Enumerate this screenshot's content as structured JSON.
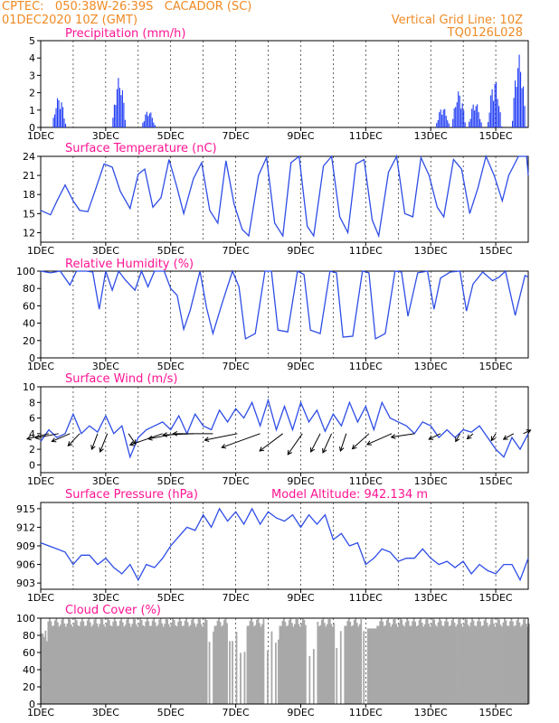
{
  "header": {
    "line1": "CPTEC:   050:38W-26:39S   CACADOR (SC)",
    "line2": "01DEC2020 10Z (GMT)",
    "grid_note": "Vertical Grid Line: 10Z",
    "code": "TQ0126L028"
  },
  "colors": {
    "header": "#f08a24",
    "title": "#ff1493",
    "line": "#2e4de6",
    "bar": "#1f3bf5",
    "cloud": "#a8a8a8",
    "frame": "#000000",
    "grid": "#000000"
  },
  "x_axis": {
    "start_day": 1,
    "end_day": 16,
    "tick_days": [
      1,
      3,
      5,
      7,
      9,
      11,
      13,
      15
    ],
    "tick_labels": [
      "1DEC",
      "3DEC",
      "5DEC",
      "7DEC",
      "9DEC",
      "11DEC",
      "13DEC",
      "15DEC"
    ]
  },
  "chart_data": [
    {
      "type": "bar",
      "title": "Precipitation (mm/h)",
      "ylim": [
        0,
        5
      ],
      "yticks": [
        0,
        1,
        2,
        3,
        4,
        5
      ],
      "grid": "dashed at 5 and day lines",
      "bursts": [
        {
          "day": 1.55,
          "peak": 1.8
        },
        {
          "day": 3.4,
          "peak": 2.9
        },
        {
          "day": 4.3,
          "peak": 1.0
        },
        {
          "day": 13.35,
          "peak": 1.2
        },
        {
          "day": 13.85,
          "peak": 2.1
        },
        {
          "day": 14.35,
          "peak": 1.5
        },
        {
          "day": 14.95,
          "peak": 2.8
        },
        {
          "day": 15.7,
          "peak": 4.2
        }
      ]
    },
    {
      "type": "line",
      "title": "Surface Temperature (nC)",
      "ylim": [
        10.5,
        24
      ],
      "yticks": [
        12,
        15,
        18,
        21,
        24
      ],
      "series": [
        {
          "x": [
            1.0,
            1.3,
            1.5,
            1.75,
            2.0,
            2.2,
            2.45,
            2.7,
            2.95,
            3.2,
            3.45,
            3.75,
            4.0,
            4.2,
            4.45,
            4.7,
            4.95,
            5.2,
            5.4,
            5.7,
            5.95,
            6.2,
            6.45,
            6.7,
            6.95,
            7.2,
            7.4,
            7.7,
            7.95,
            8.2,
            8.45,
            8.7,
            8.95,
            9.2,
            9.4,
            9.7,
            9.95,
            10.2,
            10.45,
            10.7,
            10.95,
            11.2,
            11.4,
            11.7,
            11.95,
            12.2,
            12.45,
            12.7,
            12.95,
            13.2,
            13.4,
            13.7,
            13.95,
            14.2,
            14.45,
            14.7,
            14.95,
            15.2,
            15.4,
            15.7,
            15.95,
            16.0
          ],
          "y": [
            15.5,
            14.8,
            17.0,
            19.5,
            17.0,
            15.5,
            15.3,
            19.0,
            22.8,
            22.3,
            18.5,
            15.8,
            21.2,
            22.0,
            16.0,
            17.5,
            23.5,
            19.0,
            15.0,
            20.5,
            23.0,
            15.5,
            13.5,
            23.3,
            16.5,
            12.5,
            11.5,
            21.0,
            23.8,
            13.5,
            11.5,
            23.0,
            24.0,
            13.0,
            11.5,
            22.5,
            24.0,
            14.5,
            12.0,
            22.8,
            23.5,
            14.0,
            11.5,
            21.5,
            24.0,
            15.0,
            14.5,
            23.8,
            21.0,
            16.0,
            14.5,
            23.5,
            22.0,
            15.0,
            19.0,
            24.0,
            21.0,
            17.0,
            21.0,
            24.0,
            24.0,
            21.0
          ]
        }
      ]
    },
    {
      "type": "line",
      "title": "Relative Humidity (%)",
      "ylim": [
        0,
        100
      ],
      "yticks": [
        0,
        20,
        40,
        60,
        80,
        100
      ],
      "series": [
        {
          "x": [
            1.0,
            1.3,
            1.6,
            1.9,
            2.1,
            2.4,
            2.6,
            2.8,
            3.0,
            3.2,
            3.4,
            3.6,
            3.9,
            4.1,
            4.3,
            4.5,
            4.8,
            5.0,
            5.2,
            5.4,
            5.6,
            5.9,
            6.1,
            6.3,
            6.6,
            6.9,
            7.1,
            7.3,
            7.6,
            7.9,
            8.1,
            8.3,
            8.6,
            8.9,
            9.1,
            9.3,
            9.6,
            9.9,
            10.1,
            10.3,
            10.6,
            10.9,
            11.1,
            11.3,
            11.6,
            11.9,
            12.1,
            12.3,
            12.6,
            12.9,
            13.1,
            13.3,
            13.6,
            13.9,
            14.1,
            14.3,
            14.6,
            14.9,
            15.1,
            15.3,
            15.6,
            15.9,
            16.0
          ],
          "y": [
            100,
            98,
            100,
            84,
            100,
            100,
            99,
            56,
            100,
            78,
            100,
            90,
            78,
            100,
            82,
            100,
            100,
            80,
            72,
            33,
            55,
            100,
            58,
            28,
            65,
            100,
            82,
            22,
            28,
            100,
            100,
            32,
            30,
            100,
            96,
            32,
            28,
            100,
            98,
            24,
            25,
            100,
            98,
            22,
            28,
            100,
            99,
            48,
            98,
            100,
            56,
            92,
            99,
            100,
            54,
            85,
            99,
            89,
            93,
            100,
            49,
            95,
            93
          ]
        }
      ]
    },
    {
      "type": "line",
      "title": "Surface Wind (m/s)",
      "ylim": [
        -1,
        10
      ],
      "yticks": [
        0,
        2,
        4,
        6,
        8,
        10
      ],
      "series": [
        {
          "x": [
            1.0,
            1.25,
            1.5,
            1.75,
            2.0,
            2.25,
            2.5,
            2.75,
            3.0,
            3.25,
            3.5,
            3.75,
            4.0,
            4.25,
            4.5,
            4.75,
            5.0,
            5.25,
            5.5,
            5.75,
            6.0,
            6.25,
            6.5,
            6.75,
            7.0,
            7.25,
            7.5,
            7.75,
            8.0,
            8.25,
            8.5,
            8.75,
            9.0,
            9.25,
            9.5,
            9.75,
            10.0,
            10.25,
            10.5,
            10.75,
            11.0,
            11.25,
            11.5,
            11.75,
            12.0,
            12.25,
            12.5,
            12.75,
            13.0,
            13.25,
            13.5,
            13.75,
            14.0,
            14.25,
            14.5,
            14.75,
            15.0,
            15.25,
            15.5,
            15.75,
            16.0
          ],
          "y": [
            3.0,
            4.5,
            3.5,
            4.0,
            6.5,
            4.0,
            5.0,
            4.2,
            6.3,
            4.0,
            5.0,
            1.0,
            3.5,
            4.5,
            5.0,
            5.5,
            4.5,
            6.3,
            4.0,
            6.5,
            5.0,
            4.5,
            7.0,
            5.5,
            7.2,
            6.0,
            8.0,
            5.0,
            8.3,
            4.5,
            7.5,
            4.5,
            8.0,
            5.5,
            7.0,
            4.3,
            6.5,
            5.0,
            8.0,
            5.5,
            7.5,
            4.5,
            8.0,
            6.0,
            5.5,
            5.0,
            4.0,
            5.5,
            5.0,
            3.5,
            4.5,
            3.5,
            4.5,
            4.2,
            5.0,
            3.5,
            2.0,
            1.0,
            3.5,
            2.0,
            4.0
          ]
        }
      ],
      "vectors": [
        {
          "day": 1.25,
          "u": 3.0,
          "v": 1.2
        },
        {
          "day": 1.55,
          "u": 3.2,
          "v": 1.0
        },
        {
          "day": 1.9,
          "u": 2.5,
          "v": 1.8
        },
        {
          "day": 2.2,
          "u": 1.6,
          "v": 2.8
        },
        {
          "day": 2.75,
          "u": 0.8,
          "v": 3.6
        },
        {
          "day": 3.05,
          "u": 1.0,
          "v": 4.2
        },
        {
          "day": 3.7,
          "u": -1.0,
          "v": 2.4
        },
        {
          "day": 4.75,
          "u": 4.5,
          "v": 2.6
        },
        {
          "day": 5.2,
          "u": 4.0,
          "v": 1.2
        },
        {
          "day": 5.7,
          "u": 4.2,
          "v": 0.3
        },
        {
          "day": 6.3,
          "u": 5.5,
          "v": 0.0
        },
        {
          "day": 7.05,
          "u": 4.5,
          "v": 1.5
        },
        {
          "day": 7.75,
          "u": 5.3,
          "v": 3.2
        },
        {
          "day": 8.45,
          "u": 3.2,
          "v": 4.0
        },
        {
          "day": 9.05,
          "u": 2.0,
          "v": 4.8
        },
        {
          "day": 9.6,
          "u": 1.3,
          "v": 4.2
        },
        {
          "day": 9.95,
          "u": 1.2,
          "v": 4.4
        },
        {
          "day": 10.4,
          "u": 0.8,
          "v": 4.0
        },
        {
          "day": 11.1,
          "u": 2.3,
          "v": 3.5
        },
        {
          "day": 11.8,
          "u": 3.4,
          "v": 2.5
        },
        {
          "day": 12.5,
          "u": 3.2,
          "v": 0.8
        },
        {
          "day": 13.3,
          "u": 1.6,
          "v": 1.3
        },
        {
          "day": 13.9,
          "u": 0.6,
          "v": 1.8
        },
        {
          "day": 14.3,
          "u": 0.8,
          "v": 1.2
        },
        {
          "day": 15.0,
          "u": 0.6,
          "v": 1.6
        },
        {
          "day": 15.55,
          "u": 1.4,
          "v": 1.3
        },
        {
          "day": 15.85,
          "u": -1.0,
          "v": -0.8
        }
      ]
    },
    {
      "type": "line",
      "title": "Surface Pressure (hPa)",
      "annotation": "Model Altitude: 942.134 m",
      "ylim": [
        902,
        916
      ],
      "yticks": [
        903,
        906,
        909,
        912,
        915
      ],
      "series": [
        {
          "x": [
            1.0,
            1.25,
            1.5,
            1.75,
            2.0,
            2.25,
            2.5,
            2.75,
            3.0,
            3.25,
            3.5,
            3.75,
            4.0,
            4.25,
            4.5,
            4.75,
            5.0,
            5.25,
            5.5,
            5.75,
            6.0,
            6.25,
            6.5,
            6.75,
            7.0,
            7.25,
            7.5,
            7.75,
            8.0,
            8.25,
            8.5,
            8.75,
            9.0,
            9.25,
            9.5,
            9.75,
            10.0,
            10.25,
            10.5,
            10.75,
            11.0,
            11.25,
            11.5,
            11.75,
            12.0,
            12.25,
            12.5,
            12.75,
            13.0,
            13.25,
            13.5,
            13.75,
            14.0,
            14.25,
            14.5,
            14.75,
            15.0,
            15.25,
            15.5,
            15.75,
            16.0
          ],
          "y": [
            909.5,
            909.0,
            908.5,
            908.0,
            906.0,
            907.5,
            907.5,
            906.0,
            907.0,
            905.5,
            904.5,
            906.0,
            903.5,
            906.0,
            905.5,
            907.0,
            909.0,
            910.5,
            912.0,
            911.5,
            914.0,
            912.0,
            915.0,
            913.0,
            914.5,
            912.5,
            915.0,
            912.5,
            914.5,
            913.5,
            913.0,
            914.0,
            912.0,
            914.0,
            912.5,
            914.0,
            910.0,
            911.0,
            909.0,
            909.5,
            906.0,
            907.0,
            908.5,
            908.0,
            906.5,
            907.0,
            907.0,
            908.5,
            907.0,
            906.0,
            906.5,
            905.5,
            906.5,
            904.5,
            906.0,
            905.0,
            904.5,
            906.0,
            906.0,
            903.5,
            907.0
          ]
        }
      ]
    },
    {
      "type": "area",
      "title": "Cloud Cover (%)",
      "ylim": [
        0,
        100
      ],
      "yticks": [
        0,
        20,
        40,
        60,
        80,
        100
      ],
      "clear_intervals": [
        [
          6.1,
          6.3
        ],
        [
          6.75,
          7.3
        ],
        [
          7.85,
          8.3
        ],
        [
          9.15,
          9.5
        ],
        [
          10.0,
          10.3
        ],
        [
          10.85,
          11.0
        ]
      ],
      "typical_level": 95
    }
  ]
}
